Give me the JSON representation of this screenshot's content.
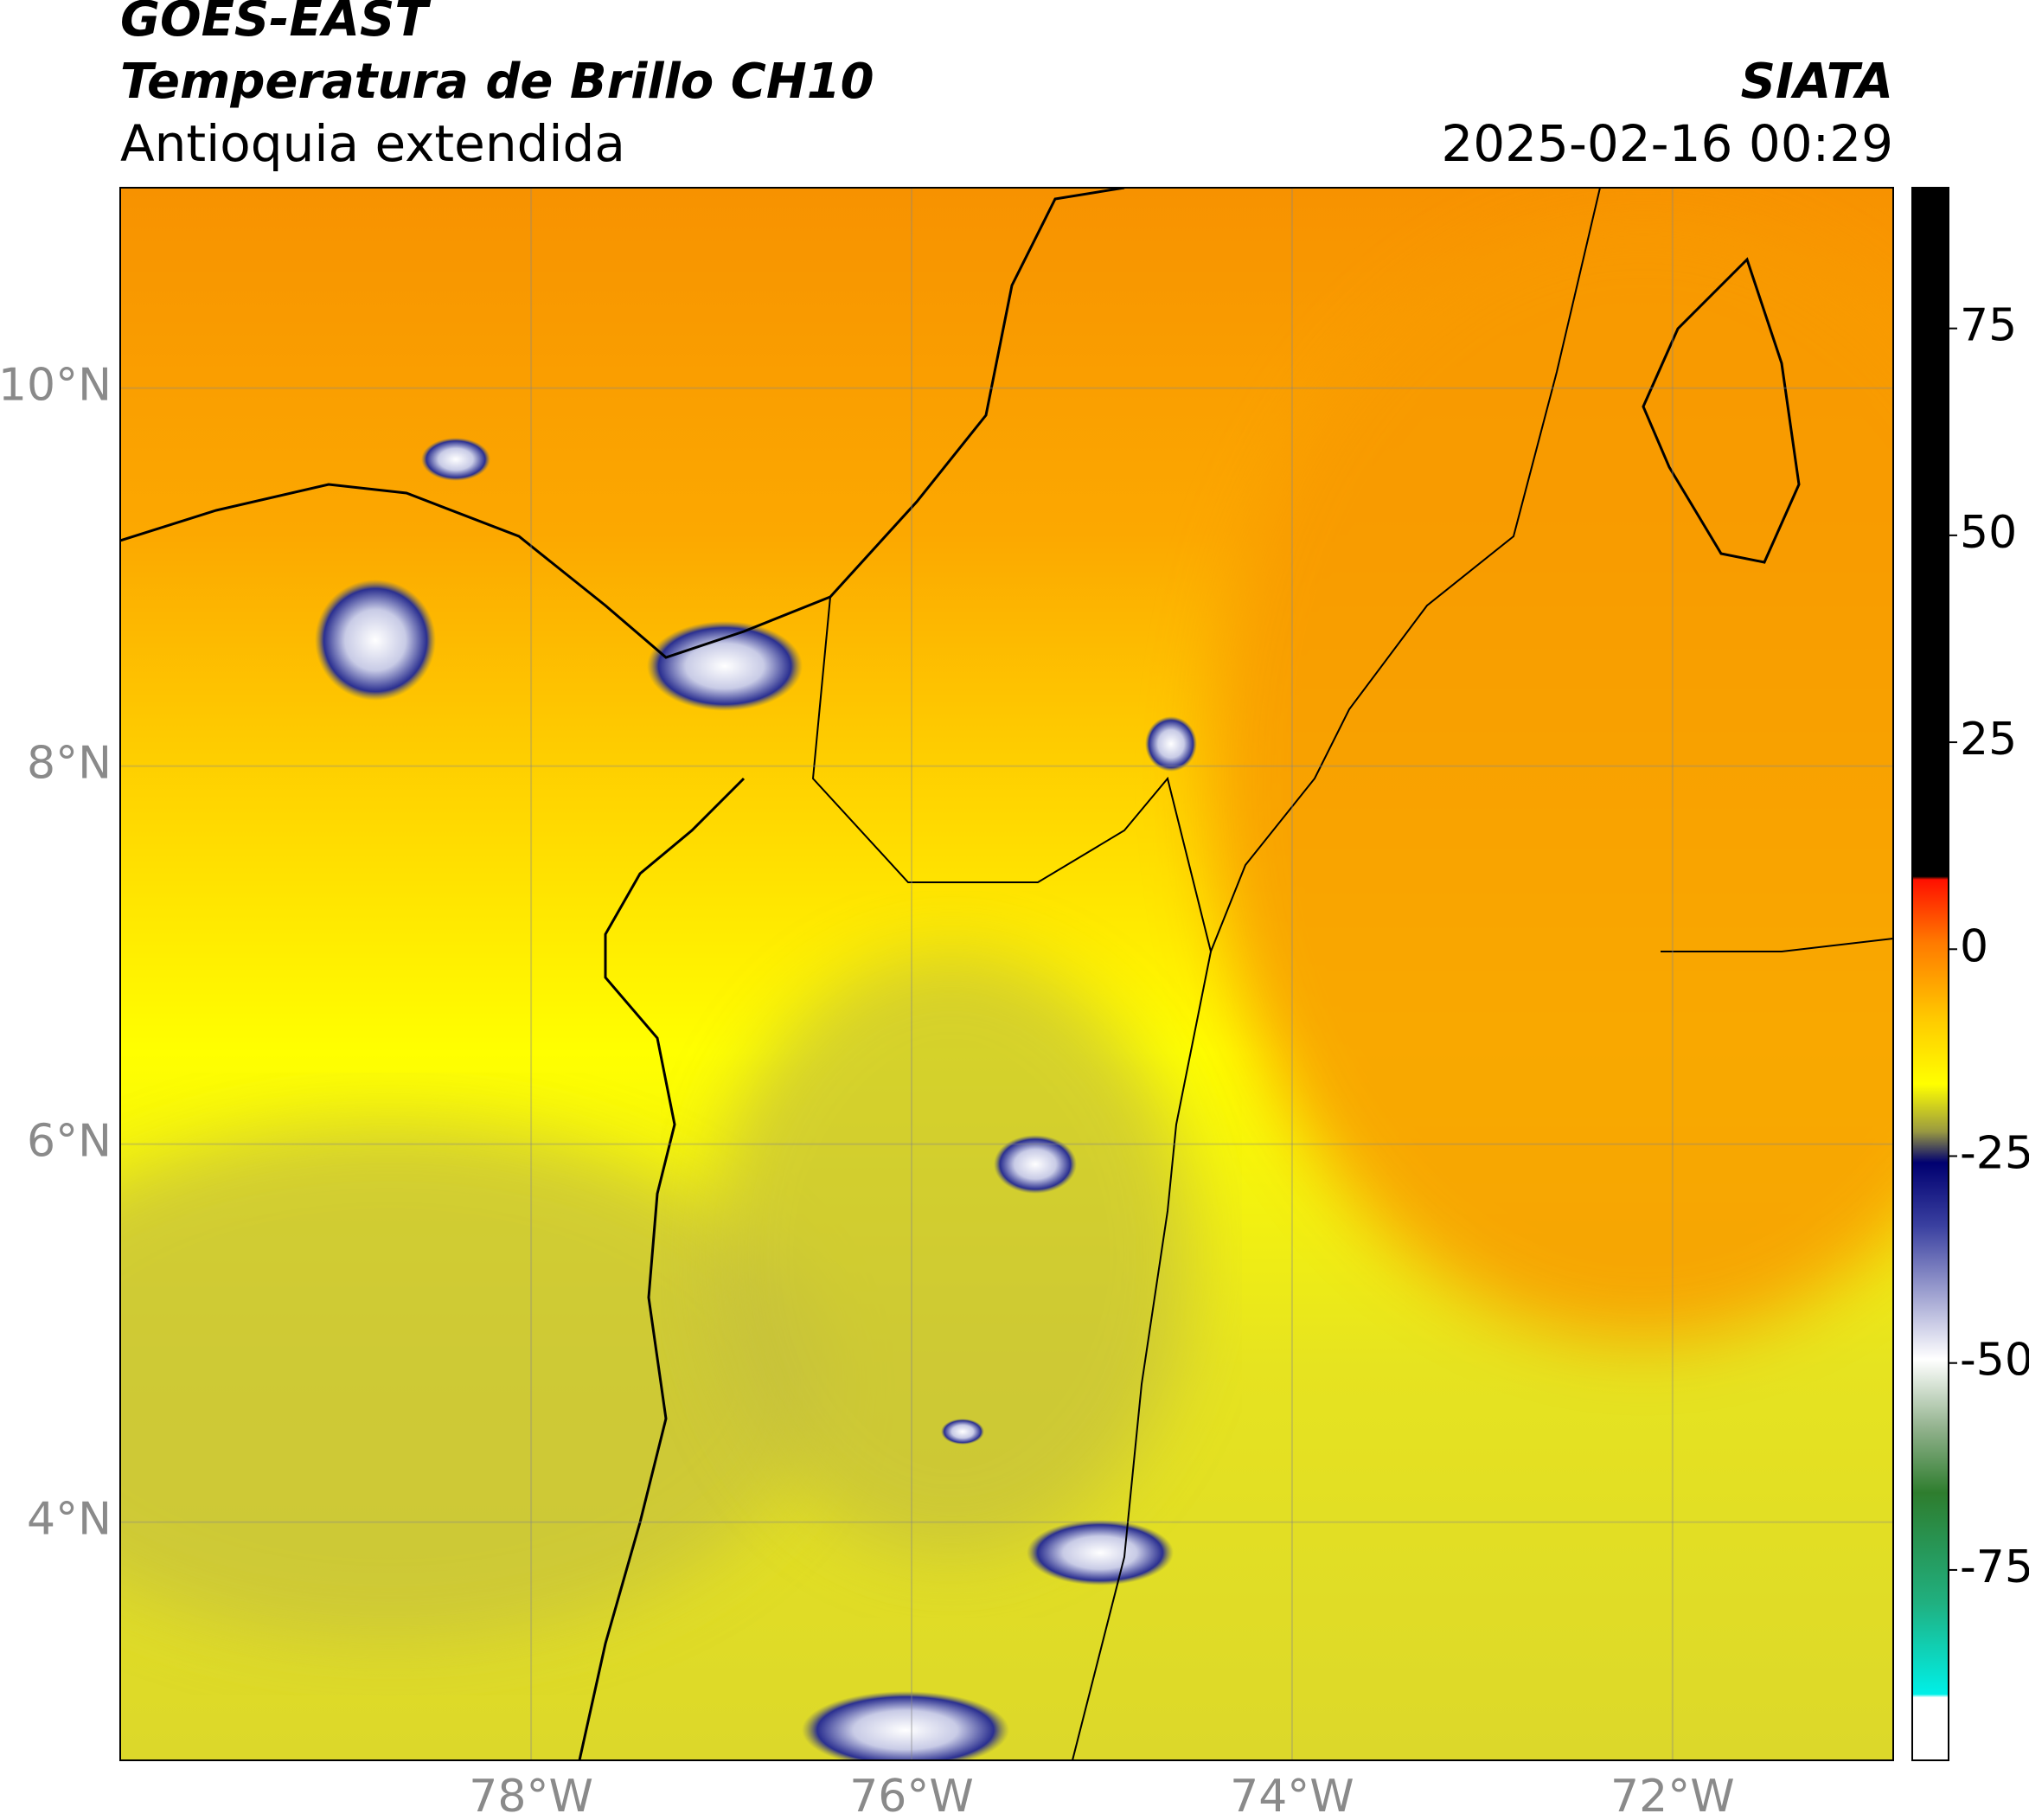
{
  "header": {
    "title": "GOES-EAST",
    "subtitle": "Temperatura de Brillo CH10",
    "region": "Antioquia extendida",
    "organization": "SIATA",
    "datetime": "2025-02-16 00:29"
  },
  "map": {
    "lat_range": [
      2.74,
      11.06
    ],
    "lon_range": [
      -80.16,
      -70.84
    ],
    "lat_ticks": [
      {
        "value": 10,
        "label": "10°N"
      },
      {
        "value": 8,
        "label": "8°N"
      },
      {
        "value": 6,
        "label": "6°N"
      },
      {
        "value": 4,
        "label": "4°N"
      }
    ],
    "lon_ticks": [
      {
        "value": -78,
        "label": "78°W"
      },
      {
        "value": -76,
        "label": "76°W"
      },
      {
        "value": -74,
        "label": "74°W"
      },
      {
        "value": -72,
        "label": "72°W"
      }
    ],
    "grid": true
  },
  "colorbar": {
    "range": [
      -98,
      92
    ],
    "ticks": [
      75,
      50,
      25,
      0,
      -25,
      -50,
      -75
    ]
  }
}
